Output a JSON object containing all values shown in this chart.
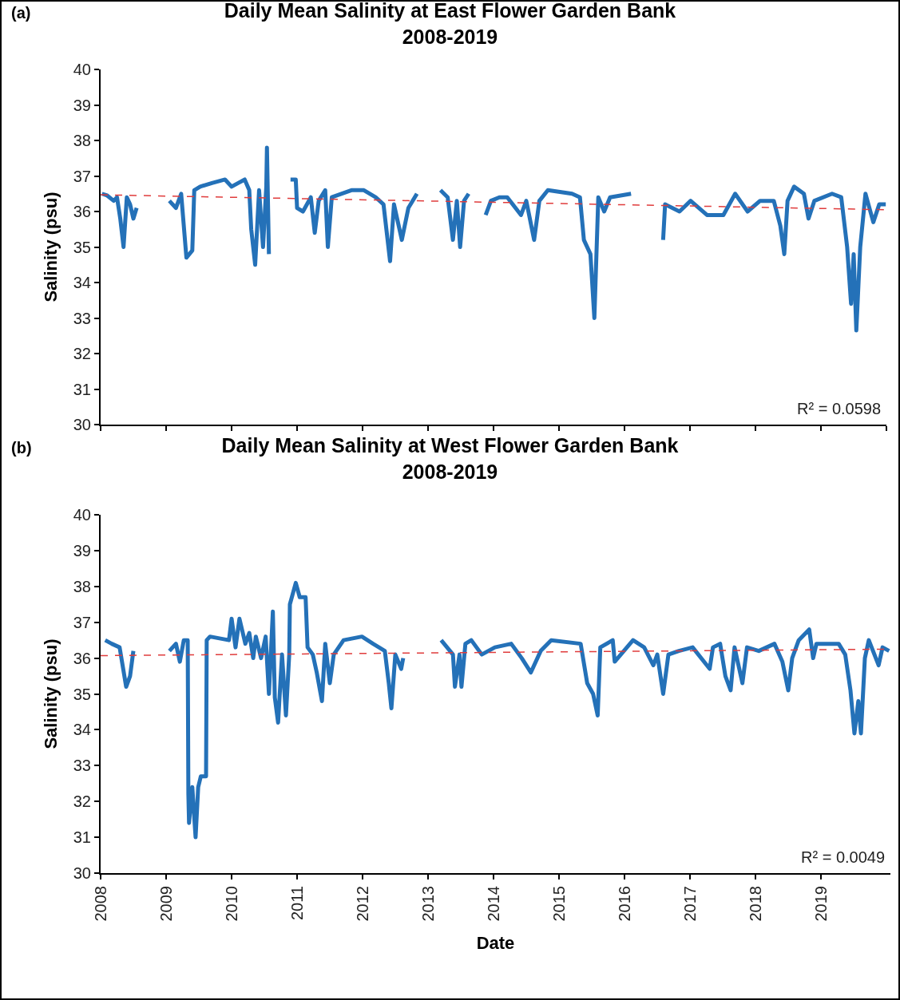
{
  "chart_data": [
    {
      "type": "line",
      "title": "Daily Mean Salinity at East Flower Garden Bank\n2008-2019",
      "ylabel": "Salinity (psu)",
      "annotations": [
        "(a)",
        "R² = 0.0598"
      ],
      "xlim": [
        2008,
        2020
      ],
      "xticks": [
        2008,
        2009,
        2010,
        2011,
        2012,
        2013,
        2014,
        2015,
        2016,
        2017,
        2018,
        2019,
        2020
      ],
      "ylim": [
        30,
        40
      ],
      "yticks": [
        30,
        31,
        32,
        33,
        34,
        35,
        36,
        37,
        38,
        39,
        40
      ],
      "tick_labels": "y",
      "grid": false,
      "marker": "none",
      "series": [
        {
          "color": "#2471b8",
          "line_style": "solid",
          "x": [
            2008.02,
            2008.1,
            2008.2,
            2008.25,
            2008.3,
            2008.35,
            2008.4,
            2008.45,
            2008.5,
            2008.55,
            2008.8,
            2009.05,
            2009.15,
            2009.23,
            2009.31,
            2009.4,
            2009.43,
            2009.52,
            2009.7,
            2009.9,
            2010.0,
            2010.1,
            2010.2,
            2010.27,
            2010.3,
            2010.36,
            2010.42,
            2010.48,
            2010.53,
            2010.54,
            2010.57,
            2010.75,
            2010.9,
            2010.98,
            2011.0,
            2011.09,
            2011.21,
            2011.27,
            2011.33,
            2011.43,
            2011.47,
            2011.53,
            2011.83,
            2012.02,
            2012.2,
            2012.32,
            2012.42,
            2012.48,
            2012.6,
            2012.7,
            2012.83,
            2013.0,
            2013.19,
            2013.3,
            2013.38,
            2013.44,
            2013.49,
            2013.55,
            2013.62,
            2013.75,
            2013.88,
            2013.96,
            2014.09,
            2014.21,
            2014.42,
            2014.5,
            2014.62,
            2014.7,
            2014.83,
            2015.2,
            2015.32,
            2015.38,
            2015.48,
            2015.54,
            2015.6,
            2015.69,
            2015.78,
            2016.1,
            2016.3,
            2016.59,
            2016.62,
            2016.84,
            2017.01,
            2017.26,
            2017.51,
            2017.69,
            2017.88,
            2018.07,
            2018.28,
            2018.38,
            2018.44,
            2018.49,
            2018.59,
            2018.74,
            2018.81,
            2018.9,
            2019.17,
            2019.31,
            2019.4,
            2019.46,
            2019.5,
            2019.54,
            2019.6,
            2019.68,
            2019.8,
            2019.89,
            2019.99
          ],
          "values": [
            36.5,
            36.45,
            36.3,
            36.4,
            35.8,
            35.0,
            36.4,
            36.2,
            35.8,
            36.1,
            null,
            36.3,
            36.1,
            36.5,
            34.7,
            34.9,
            36.6,
            36.7,
            36.8,
            36.9,
            36.7,
            36.8,
            36.9,
            36.6,
            35.5,
            34.5,
            36.6,
            35.0,
            36.7,
            37.8,
            34.8,
            null,
            36.9,
            36.9,
            36.1,
            36.0,
            36.4,
            35.4,
            36.3,
            36.6,
            35.0,
            36.4,
            36.6,
            36.6,
            36.4,
            36.2,
            34.6,
            36.2,
            35.2,
            36.1,
            36.5,
            null,
            36.6,
            36.4,
            35.2,
            36.3,
            35.0,
            36.3,
            36.5,
            null,
            35.9,
            36.3,
            36.4,
            36.4,
            35.9,
            36.3,
            35.2,
            36.3,
            36.6,
            36.5,
            36.4,
            35.2,
            34.8,
            33.0,
            36.4,
            36.0,
            36.4,
            36.5,
            null,
            35.2,
            36.2,
            36.0,
            36.3,
            35.9,
            35.9,
            36.5,
            36.0,
            36.3,
            36.3,
            35.6,
            34.8,
            36.3,
            36.7,
            36.5,
            35.8,
            36.3,
            36.5,
            36.4,
            35.0,
            33.4,
            34.8,
            32.65,
            35.0,
            36.5,
            35.7,
            36.2,
            36.2
          ]
        },
        {
          "color": "#e03c3c",
          "line_style": "dashed",
          "x": [
            2008,
            2020
          ],
          "values": [
            36.47,
            36.05
          ]
        }
      ]
    },
    {
      "type": "line",
      "title": "Daily Mean Salinity at West Flower Garden Bank\n2008-2019",
      "xlabel": "Date",
      "ylabel": "Salinity (psu)",
      "annotations": [
        "(b)",
        "R² = 0.0049"
      ],
      "xlim": [
        2008,
        2020.06
      ],
      "xticks": [
        2008,
        2009,
        2010,
        2011,
        2012,
        2013,
        2014,
        2015,
        2016,
        2017,
        2018,
        2019
      ],
      "ylim": [
        30,
        40
      ],
      "yticks": [
        30,
        31,
        32,
        33,
        34,
        35,
        36,
        37,
        38,
        39,
        40
      ],
      "grid": false,
      "marker": "none",
      "series": [
        {
          "color": "#2471b8",
          "line_style": "solid",
          "x": [
            2008.07,
            2008.17,
            2008.29,
            2008.39,
            2008.45,
            2008.5,
            2008.8,
            2009.05,
            2009.15,
            2009.21,
            2009.27,
            2009.33,
            2009.34,
            2009.35,
            2009.4,
            2009.45,
            2009.49,
            2009.53,
            2009.61,
            2009.62,
            2009.67,
            2009.96,
            2010.0,
            2010.06,
            2010.12,
            2010.21,
            2010.27,
            2010.33,
            2010.37,
            2010.45,
            2010.52,
            2010.57,
            2010.63,
            2010.66,
            2010.71,
            2010.77,
            2010.83,
            2010.88,
            2010.89,
            2010.98,
            2011.04,
            2011.13,
            2011.16,
            2011.24,
            2011.3,
            2011.38,
            2011.43,
            2011.5,
            2011.56,
            2011.71,
            2011.99,
            2012.16,
            2012.34,
            2012.4,
            2012.44,
            2012.5,
            2012.59,
            2012.62,
            2012.9,
            2013.2,
            2013.38,
            2013.41,
            2013.48,
            2013.51,
            2013.57,
            2013.66,
            2013.82,
            2014.02,
            2014.27,
            2014.43,
            2014.57,
            2014.72,
            2014.88,
            2015.33,
            2015.43,
            2015.52,
            2015.59,
            2015.63,
            2015.82,
            2015.85,
            2016.13,
            2016.3,
            2016.44,
            2016.5,
            2016.59,
            2016.67,
            2016.83,
            2017.04,
            2017.3,
            2017.35,
            2017.46,
            2017.54,
            2017.62,
            2017.68,
            2017.8,
            2017.87,
            2018.05,
            2018.29,
            2018.41,
            2018.5,
            2018.56,
            2018.66,
            2018.82,
            2018.88,
            2018.93,
            2019.27,
            2019.37,
            2019.45,
            2019.51,
            2019.57,
            2019.61,
            2019.67,
            2019.73,
            2019.88,
            2019.94,
            2020.04
          ],
          "values": [
            36.5,
            36.4,
            36.3,
            35.2,
            35.5,
            36.2,
            null,
            36.2,
            36.4,
            35.9,
            36.5,
            36.5,
            32.2,
            31.4,
            32.4,
            31.0,
            32.4,
            32.7,
            32.7,
            36.5,
            36.6,
            36.5,
            37.1,
            36.3,
            37.1,
            36.4,
            36.7,
            36.0,
            36.6,
            36.0,
            36.6,
            35.0,
            37.3,
            34.9,
            34.2,
            36.1,
            34.4,
            36.1,
            37.5,
            38.1,
            37.7,
            37.7,
            36.3,
            36.1,
            35.6,
            34.8,
            36.4,
            35.3,
            36.1,
            36.5,
            36.6,
            36.4,
            36.2,
            35.3,
            34.6,
            36.1,
            35.7,
            36.0,
            null,
            36.5,
            36.1,
            35.2,
            36.1,
            35.2,
            36.4,
            36.5,
            36.1,
            36.3,
            36.4,
            36.0,
            35.6,
            36.2,
            36.5,
            36.4,
            35.3,
            35.0,
            34.4,
            36.3,
            36.5,
            35.9,
            36.5,
            36.3,
            35.8,
            36.1,
            35.0,
            36.1,
            36.2,
            36.3,
            35.7,
            36.3,
            36.4,
            35.5,
            35.1,
            36.3,
            35.3,
            36.3,
            36.2,
            36.4,
            35.9,
            35.1,
            36.0,
            36.5,
            36.8,
            36.0,
            36.4,
            36.4,
            36.1,
            35.1,
            33.9,
            34.8,
            33.9,
            36.0,
            36.5,
            35.8,
            36.3,
            36.2
          ]
        },
        {
          "color": "#e03c3c",
          "line_style": "dashed",
          "x": [
            2008,
            2020.06
          ],
          "values": [
            36.07,
            36.25
          ]
        }
      ]
    }
  ]
}
